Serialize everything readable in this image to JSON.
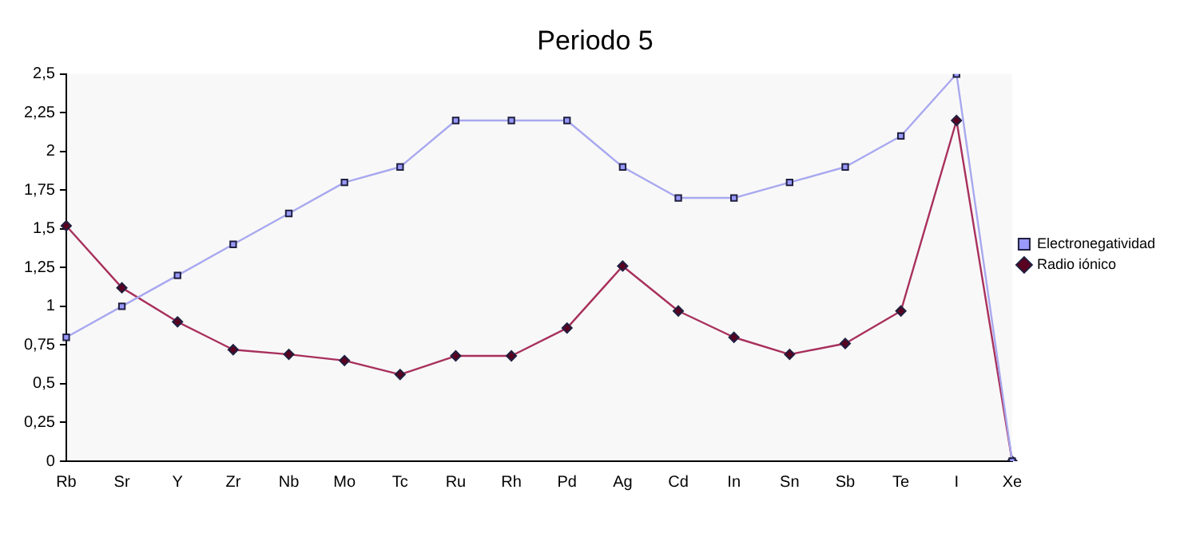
{
  "chart_data": {
    "type": "line",
    "title": "Periodo 5",
    "categories": [
      "Rb",
      "Sr",
      "Y",
      "Zr",
      "Nb",
      "Mo",
      "Tc",
      "Ru",
      "Rh",
      "Pd",
      "Ag",
      "Cd",
      "In",
      "Sn",
      "Sb",
      "Te",
      "I",
      "Xe"
    ],
    "series": [
      {
        "name": "Electronegatividad",
        "color": "#a8a8f0",
        "marker": "square",
        "values": [
          0.8,
          1.0,
          1.2,
          1.4,
          1.6,
          1.8,
          1.9,
          2.2,
          2.2,
          2.2,
          1.9,
          1.7,
          1.7,
          1.8,
          1.9,
          2.1,
          2.5,
          0
        ]
      },
      {
        "name": "Radio iónico",
        "color": "#a8305c",
        "marker": "diamond",
        "values": [
          1.52,
          1.12,
          0.9,
          0.72,
          0.69,
          0.65,
          0.56,
          0.68,
          0.68,
          0.86,
          1.26,
          0.97,
          0.8,
          0.69,
          0.76,
          0.97,
          2.2,
          0
        ]
      }
    ],
    "ylim": [
      0,
      2.5
    ],
    "yticks": [
      0,
      {
        "value": 0.25,
        "label": "0,25"
      },
      {
        "value": 0.5,
        "label": "0,5"
      },
      {
        "value": 0.75,
        "label": "0,75"
      },
      1,
      {
        "value": 1.25,
        "label": "1,25"
      },
      {
        "value": 1.5,
        "label": "1,5"
      },
      {
        "value": 1.75,
        "label": "1,75"
      },
      2,
      {
        "value": 2.25,
        "label": "2,25"
      },
      {
        "value": 2.5,
        "label": "2,5"
      }
    ],
    "grid": false,
    "legend": "right",
    "line_style": "solid"
  }
}
